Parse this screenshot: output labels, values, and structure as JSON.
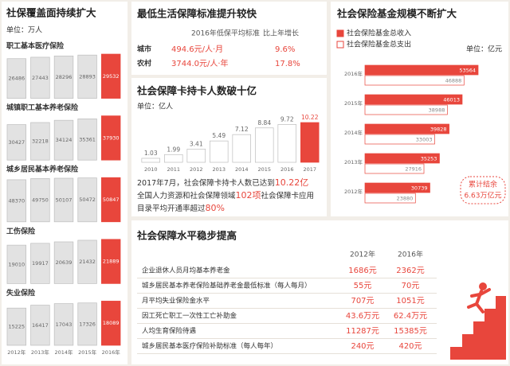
{
  "chart_data": [
    {
      "type": "bar",
      "title": "社保覆盖面持续扩大",
      "unit": "单位：万人",
      "categories": [
        "2012年",
        "2013年",
        "2014年",
        "2015年",
        "2016年"
      ],
      "bar_colors": [
        "#e2e2e2",
        "#e2e2e2",
        "#e2e2e2",
        "#e2e2e2",
        "#e8463c"
      ],
      "label_position": "inside",
      "series": [
        {
          "name": "职工基本医疗保险",
          "values": [
            26486,
            27443,
            28296,
            28893,
            29532
          ]
        },
        {
          "name": "城镇职工基本养老保险",
          "values": [
            30427,
            32218,
            34124,
            35361,
            37930
          ]
        },
        {
          "name": "城乡居民基本养老保险",
          "values": [
            48370,
            49750,
            50107,
            50472,
            50847
          ]
        },
        {
          "name": "工伤保险",
          "values": [
            19010,
            19917,
            20639,
            21432,
            21889
          ]
        },
        {
          "name": "失业保险",
          "values": [
            15225,
            16417,
            17043,
            17326,
            18089
          ]
        }
      ]
    },
    {
      "type": "bar",
      "title": "社会保障卡持卡人数破十亿",
      "unit": "单位：亿人",
      "categories": [
        "2010",
        "2011",
        "2012",
        "2013",
        "2014",
        "2015",
        "2016",
        "2017"
      ],
      "values": [
        1.03,
        1.99,
        3.41,
        5.49,
        7.12,
        8.84,
        9.72,
        10.22
      ],
      "bar_colors": [
        "#ffffff",
        "#ffffff",
        "#ffffff",
        "#ffffff",
        "#ffffff",
        "#ffffff",
        "#ffffff",
        "#e8463c"
      ],
      "label_position": "above",
      "note": [
        [
          "2017年7月，社会保障卡持卡人数已达到",
          "10.22亿"
        ],
        [
          "全国人力资源和社会保障领域",
          "102项",
          "社会保障卡应用"
        ],
        [
          "目录平均开通率超过",
          "80%"
        ]
      ]
    },
    {
      "type": "hbar",
      "title": "社会保险基金规模不断扩大",
      "unit": "单位：亿元",
      "categories": [
        "2016年",
        "2015年",
        "2014年",
        "2013年",
        "2012年"
      ],
      "series": [
        {
          "name": "社会保险基金总收入",
          "color": "#e8463c",
          "values": [
            53564,
            46013,
            39828,
            35253,
            30739
          ]
        },
        {
          "name": "社会保险基金总支出",
          "color": "#ffffff",
          "values": [
            46888,
            38988,
            33003,
            27916,
            23880
          ]
        }
      ],
      "annotation": [
        "累计结余",
        "6.63万亿元"
      ]
    }
  ],
  "min_living": {
    "title": "最低生活保障标准提升较快",
    "header": [
      "2016年低保平均标准",
      "比上年增长"
    ],
    "rows": [
      [
        "城市",
        "494.6元/人·月",
        "9.6%"
      ],
      [
        "农村",
        "3744.0元/人·年",
        "17.8%"
      ]
    ]
  },
  "welfare_level": {
    "title": "社会保障水平稳步提高",
    "header": [
      "2012年",
      "2016年"
    ],
    "rows": [
      [
        "企业退休人员月均基本养老金",
        "1686元",
        "2362元"
      ],
      [
        "城乡居民基本养老保险基础养老金最低标准（每人每月）",
        "55元",
        "70元"
      ],
      [
        "月平均失业保险金水平",
        "707元",
        "1051元"
      ],
      [
        "因工死亡职工一次性工亡补助金",
        "43.6万元",
        "62.4万元"
      ],
      [
        "人均生育保险待遇",
        "11287元",
        "15385元"
      ],
      [
        "城乡居民基本医疗保险补助标准（每人每年）",
        "240元",
        "420元"
      ]
    ]
  }
}
